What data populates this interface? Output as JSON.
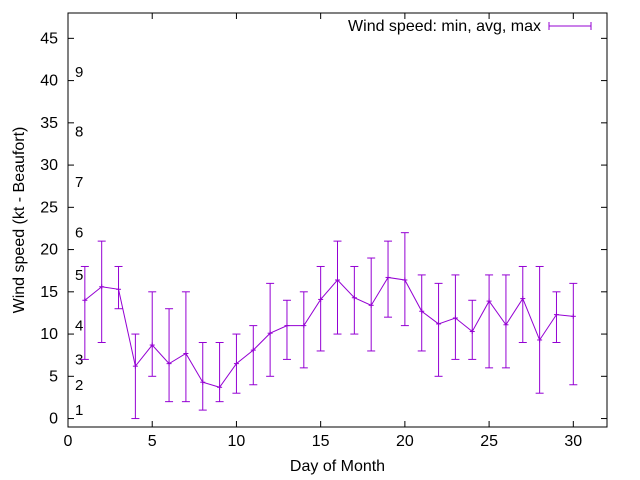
{
  "chart_data": {
    "type": "line",
    "title": "",
    "xlabel": "Day of Month",
    "ylabel": "Wind speed (kt - Beaufort)",
    "xlim": [
      0,
      32
    ],
    "ylim": [
      -1,
      48
    ],
    "xticks": [
      0,
      5,
      10,
      15,
      20,
      25,
      30
    ],
    "yticks": [
      0,
      5,
      10,
      15,
      20,
      25,
      30,
      35,
      40,
      45
    ],
    "grid": false,
    "legend_position": "top-right",
    "series_color": "#9400d3",
    "beaufort_labels": [
      {
        "label": "1",
        "y": 1
      },
      {
        "label": "2",
        "y": 4
      },
      {
        "label": "3",
        "y": 7
      },
      {
        "label": "4",
        "y": 11
      },
      {
        "label": "5",
        "y": 17
      },
      {
        "label": "6",
        "y": 22
      },
      {
        "label": "7",
        "y": 28
      },
      {
        "label": "8",
        "y": 34
      },
      {
        "label": "9",
        "y": 41
      }
    ],
    "series": [
      {
        "name": "Wind speed: min, avg, max",
        "x": [
          1,
          2,
          3,
          4,
          5,
          6,
          7,
          8,
          9,
          10,
          11,
          12,
          13,
          14,
          15,
          16,
          17,
          18,
          19,
          20,
          21,
          22,
          23,
          24,
          25,
          26,
          27,
          28,
          29,
          30
        ],
        "avg": [
          14,
          15.6,
          15.3,
          6.2,
          8.7,
          6.5,
          7.7,
          4.3,
          3.7,
          6.5,
          8.1,
          10.1,
          11,
          11,
          14.1,
          16.4,
          14.3,
          13.4,
          16.7,
          16.4,
          12.7,
          11.2,
          11.9,
          10.3,
          13.9,
          11.1,
          14.2,
          9.3,
          12.3,
          12.1
        ],
        "min": [
          7,
          9,
          13,
          0,
          5,
          2,
          2,
          1,
          2,
          3,
          4,
          5,
          7,
          6,
          8,
          10,
          10,
          8,
          12,
          11,
          8,
          5,
          7,
          7,
          6,
          6,
          9,
          3,
          9,
          4
        ],
        "max": [
          18,
          21,
          18,
          10,
          15,
          13,
          15,
          9,
          9,
          10,
          11,
          16,
          14,
          15,
          18,
          21,
          18,
          19,
          21,
          22,
          17,
          16,
          17,
          14,
          17,
          17,
          18,
          18,
          15,
          16
        ]
      }
    ]
  }
}
